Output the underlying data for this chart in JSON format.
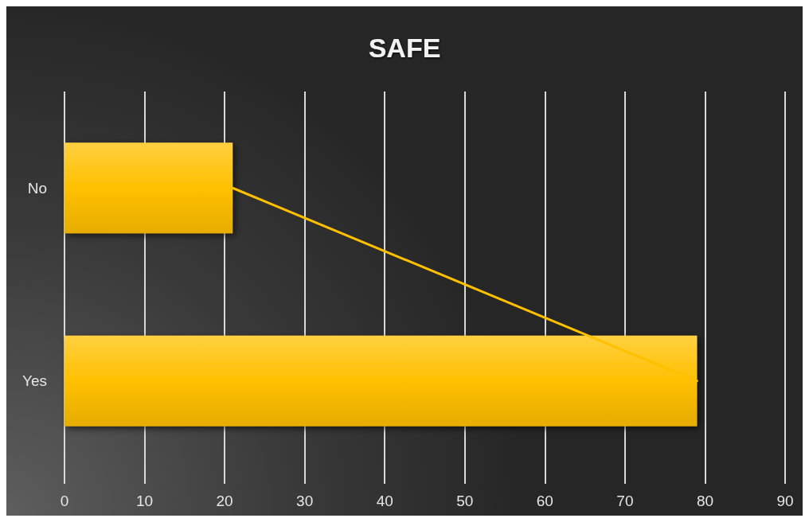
{
  "chart_data": {
    "type": "bar",
    "orientation": "horizontal",
    "title": "SAFE",
    "categories": [
      "No",
      "Yes"
    ],
    "series": [
      {
        "type": "bar",
        "color": "#ffc000",
        "values": [
          21,
          79
        ]
      },
      {
        "type": "line",
        "color": "#ffc000",
        "values": [
          21,
          79
        ]
      }
    ],
    "xlim": [
      0,
      90
    ],
    "xticks": [
      0,
      10,
      20,
      30,
      40,
      50,
      60,
      70,
      80,
      90
    ],
    "grid": "x",
    "marker": "none",
    "line_style": "solid"
  }
}
